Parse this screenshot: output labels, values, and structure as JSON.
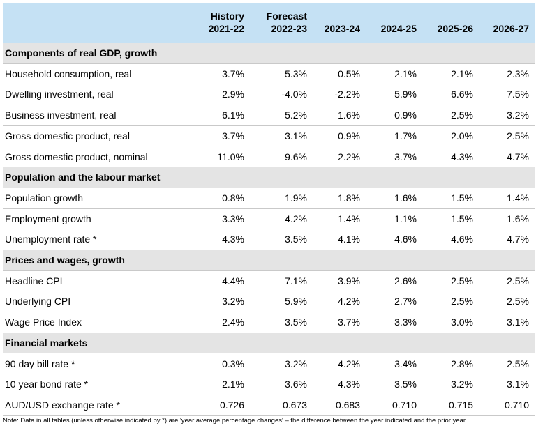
{
  "header": {
    "columns": [
      {
        "line1": "History",
        "line2": "2021-22"
      },
      {
        "line1": "Forecast",
        "line2": "2022-23"
      },
      {
        "line1": "",
        "line2": "2023-24"
      },
      {
        "line1": "",
        "line2": "2024-25"
      },
      {
        "line1": "",
        "line2": "2025-26"
      },
      {
        "line1": "",
        "line2": "2026-27"
      }
    ]
  },
  "rows": [
    {
      "type": "section",
      "label": "Components of real GDP, growth"
    },
    {
      "type": "data",
      "label": "Household consumption, real",
      "values": [
        "3.7%",
        "5.3%",
        "0.5%",
        "2.1%",
        "2.1%",
        "2.3%"
      ]
    },
    {
      "type": "data",
      "label": "Dwelling investment, real",
      "values": [
        "2.9%",
        "-4.0%",
        "-2.2%",
        "5.9%",
        "6.6%",
        "7.5%"
      ]
    },
    {
      "type": "data",
      "label": "Business investment, real",
      "values": [
        "6.1%",
        "5.2%",
        "1.6%",
        "0.9%",
        "2.5%",
        "3.2%"
      ]
    },
    {
      "type": "data",
      "label": "Gross domestic product, real",
      "values": [
        "3.7%",
        "3.1%",
        "0.9%",
        "1.7%",
        "2.0%",
        "2.5%"
      ]
    },
    {
      "type": "data",
      "label": "Gross domestic product, nominal",
      "values": [
        "11.0%",
        "9.6%",
        "2.2%",
        "3.7%",
        "4.3%",
        "4.7%"
      ]
    },
    {
      "type": "section",
      "label": "Population and the labour market"
    },
    {
      "type": "data",
      "label": "Population growth",
      "values": [
        "0.8%",
        "1.9%",
        "1.8%",
        "1.6%",
        "1.5%",
        "1.4%"
      ]
    },
    {
      "type": "data",
      "label": "Employment growth",
      "values": [
        "3.3%",
        "4.2%",
        "1.4%",
        "1.1%",
        "1.5%",
        "1.6%"
      ]
    },
    {
      "type": "data",
      "label": "Unemployment rate *",
      "values": [
        "4.3%",
        "3.5%",
        "4.1%",
        "4.6%",
        "4.6%",
        "4.7%"
      ]
    },
    {
      "type": "section",
      "label": "Prices and wages, growth"
    },
    {
      "type": "data",
      "label": "Headline CPI",
      "values": [
        "4.4%",
        "7.1%",
        "3.9%",
        "2.6%",
        "2.5%",
        "2.5%"
      ]
    },
    {
      "type": "data",
      "label": "Underlying CPI",
      "values": [
        "3.2%",
        "5.9%",
        "4.2%",
        "2.7%",
        "2.5%",
        "2.5%"
      ]
    },
    {
      "type": "data",
      "label": "Wage Price Index",
      "values": [
        "2.4%",
        "3.5%",
        "3.7%",
        "3.3%",
        "3.0%",
        "3.1%"
      ]
    },
    {
      "type": "section",
      "label": "Financial markets"
    },
    {
      "type": "data",
      "label": "90 day bill rate *",
      "values": [
        "0.3%",
        "3.2%",
        "4.2%",
        "3.4%",
        "2.8%",
        "2.5%"
      ]
    },
    {
      "type": "data",
      "label": "10 year bond rate *",
      "values": [
        "2.1%",
        "3.6%",
        "4.3%",
        "3.5%",
        "3.2%",
        "3.1%"
      ]
    },
    {
      "type": "data",
      "label": "AUD/USD exchange rate *",
      "values": [
        "0.726",
        "0.673",
        "0.683",
        "0.710",
        "0.715",
        "0.710"
      ]
    }
  ],
  "note": "Note: Data in all tables (unless otherwise indicated by *) are 'year average percentage changes' – the difference between the year indicated and the prior year.",
  "colors": {
    "header_bg": "#c5e1f4",
    "section_bg": "#e4e4e4",
    "rule": "#c9c9c9"
  }
}
